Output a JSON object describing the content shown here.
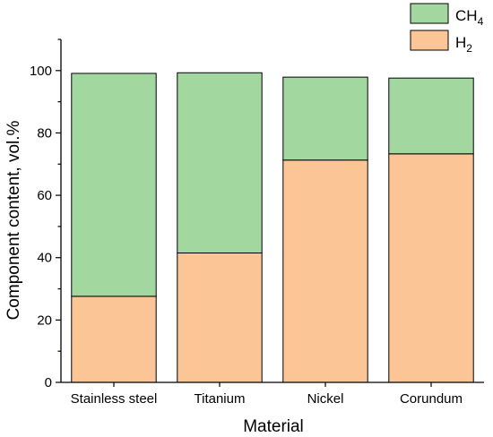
{
  "chart_data": {
    "type": "bar",
    "stacked": true,
    "categories": [
      "Stainless steel",
      "Titanium",
      "Nickel",
      "Corundum"
    ],
    "series": [
      {
        "name": "H",
        "subscript": "2",
        "values": [
          27.6,
          41.5,
          71.3,
          73.3
        ],
        "color": "#fcc596"
      },
      {
        "name": "CH",
        "subscript": "4",
        "values": [
          71.5,
          57.8,
          26.6,
          24.3
        ],
        "color": "#a2d7a0"
      }
    ],
    "xlabel": "Material",
    "ylabel": "Component content, vol.%",
    "ylim": [
      0,
      110
    ],
    "yticks": [
      0,
      20,
      40,
      60,
      80,
      100
    ],
    "legend_position": "top-right",
    "grid": false
  }
}
